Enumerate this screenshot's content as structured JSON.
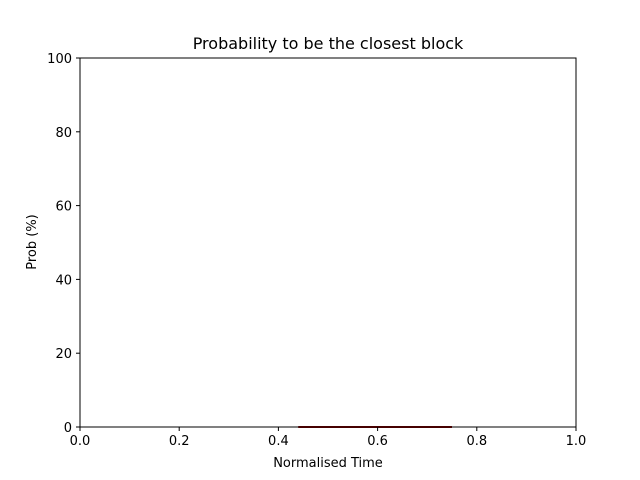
{
  "chart_data": {
    "type": "line",
    "title": "Probability to be the closest block",
    "xlabel": "Normalised Time",
    "ylabel": "Prob (%)",
    "xlim": [
      0.0,
      1.0
    ],
    "ylim": [
      0,
      100
    ],
    "x_ticks": [
      "0.0",
      "0.2",
      "0.4",
      "0.6",
      "0.8",
      "1.0"
    ],
    "y_ticks": [
      "0",
      "20",
      "40",
      "60",
      "80",
      "100"
    ],
    "grid": false,
    "series": [
      {
        "color": "#8b0000",
        "x": [
          0.44,
          0.75
        ],
        "y": [
          0,
          0
        ]
      }
    ]
  }
}
